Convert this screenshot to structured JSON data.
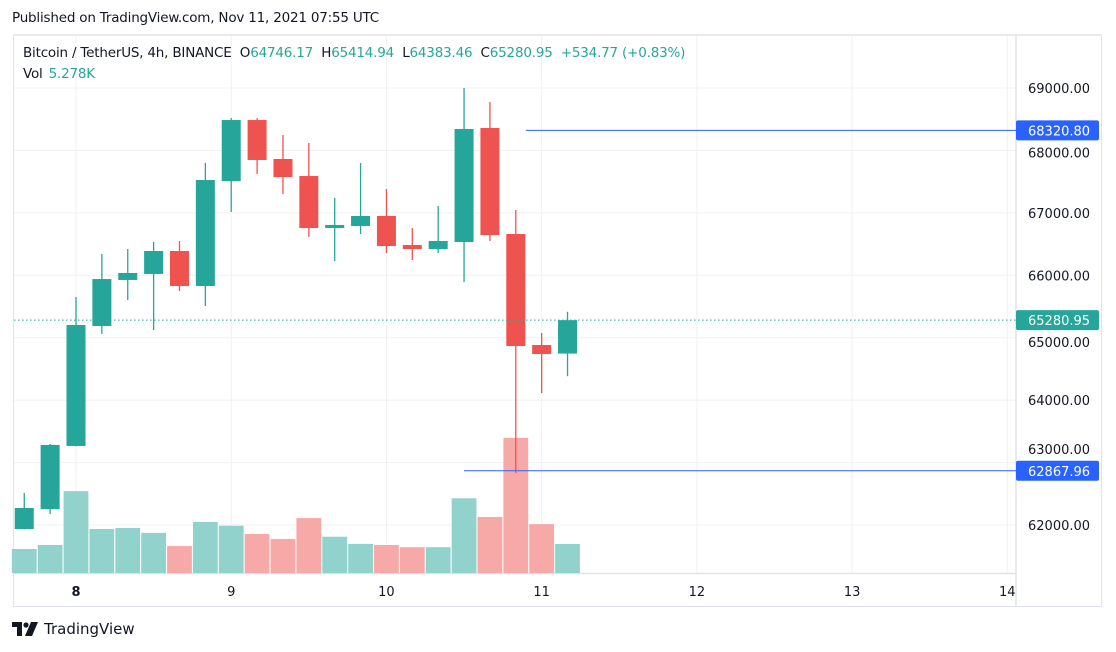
{
  "published": "Published on TradingView.com, Nov 11, 2021 07:55 UTC",
  "legend": {
    "symbol": "Bitcoin / TetherUS, 4h, BINANCE",
    "o_label": "O",
    "o": "64746.17",
    "h_label": "H",
    "h": "65414.94",
    "l_label": "L",
    "l": "64383.46",
    "c_label": "C",
    "c": "65280.95",
    "change": "+534.77 (+0.83%)",
    "vol_label": "Vol",
    "vol": "5.278K"
  },
  "footer": {
    "brand": "TradingView",
    "logo_icon": "tradingview-logo-icon"
  },
  "colors": {
    "up": "#26a69a",
    "down": "#ef5350",
    "up_vol": "#92d2cc",
    "down_vol": "#f7a9a7",
    "line": "#2962ff",
    "grid": "#f0f1f3"
  },
  "chart_data": {
    "type": "candlestick",
    "title": "Bitcoin / TetherUS, 4h, BINANCE",
    "ylim": [
      61250,
      69200
    ],
    "y_ticks": [
      62000,
      63000,
      64000,
      65000,
      66000,
      67000,
      68000,
      69000
    ],
    "y_tick_labels": [
      "62000.00",
      "63000.00",
      "64000.00",
      "65000.00",
      "66000.00",
      "67000.00",
      "68000.00",
      "69000.00"
    ],
    "x_ticks": [
      {
        "label": "8",
        "index": 2
      },
      {
        "label": "9",
        "index": 8
      },
      {
        "label": "10",
        "index": 14
      },
      {
        "label": "11",
        "index": 20
      },
      {
        "label": "12",
        "index": 26
      },
      {
        "label": "13",
        "index": 32
      },
      {
        "label": "14",
        "index": 38
      }
    ],
    "candles": [
      {
        "o": 61936,
        "h": 62513,
        "l": 61930,
        "c": 62273,
        "v": 4.37
      },
      {
        "o": 62256,
        "h": 63298,
        "l": 62176,
        "c": 63282,
        "v": 5.1
      },
      {
        "o": 63266,
        "h": 65652,
        "l": 63260,
        "c": 65204,
        "v": 14.9
      },
      {
        "o": 65188,
        "h": 66340,
        "l": 65060,
        "c": 65940,
        "v": 8.0
      },
      {
        "o": 65925,
        "h": 66421,
        "l": 65604,
        "c": 66037,
        "v": 8.2
      },
      {
        "o": 66021,
        "h": 66533,
        "l": 65124,
        "c": 66389,
        "v": 7.3
      },
      {
        "o": 66389,
        "h": 66549,
        "l": 65748,
        "c": 65828,
        "v": 4.9
      },
      {
        "o": 65828,
        "h": 67799,
        "l": 65508,
        "c": 67526,
        "v": 9.3
      },
      {
        "o": 67510,
        "h": 68519,
        "l": 67014,
        "c": 68487,
        "v": 8.6
      },
      {
        "o": 68487,
        "h": 68519,
        "l": 67622,
        "c": 67847,
        "v": 7.1
      },
      {
        "o": 67863,
        "h": 68247,
        "l": 67302,
        "c": 67574,
        "v": 6.2
      },
      {
        "o": 67590,
        "h": 68119,
        "l": 66613,
        "c": 66757,
        "v": 10.0
      },
      {
        "o": 66757,
        "h": 67238,
        "l": 66229,
        "c": 66806,
        "v": 6.6
      },
      {
        "o": 66790,
        "h": 67799,
        "l": 66661,
        "c": 66950,
        "v": 5.3
      },
      {
        "o": 66950,
        "h": 67382,
        "l": 66357,
        "c": 66469,
        "v": 5.1
      },
      {
        "o": 66485,
        "h": 66757,
        "l": 66245,
        "c": 66421,
        "v": 4.7
      },
      {
        "o": 66421,
        "h": 67110,
        "l": 66357,
        "c": 66549,
        "v": 4.7
      },
      {
        "o": 66533,
        "h": 69000,
        "l": 65892,
        "c": 68343,
        "v": 13.6
      },
      {
        "o": 68359,
        "h": 68776,
        "l": 66549,
        "c": 66645,
        "v": 10.2
      },
      {
        "o": 66661,
        "h": 67046,
        "l": 62833,
        "c": 64867,
        "v": 24.6
      },
      {
        "o": 64883,
        "h": 65076,
        "l": 64114,
        "c": 64739,
        "v": 8.9
      },
      {
        "o": 64746.17,
        "h": 65414.94,
        "l": 64383.46,
        "c": 65280.95,
        "v": 5.278
      }
    ],
    "volume_unit": "K",
    "horizontal_lines": [
      {
        "value": 68320.8,
        "label": "68320.80",
        "from_index": 19
      },
      {
        "value": 62867.96,
        "label": "62867.96",
        "from_index": 17
      }
    ],
    "last_price": {
      "value": 65280.95,
      "label": "65280.95"
    }
  }
}
